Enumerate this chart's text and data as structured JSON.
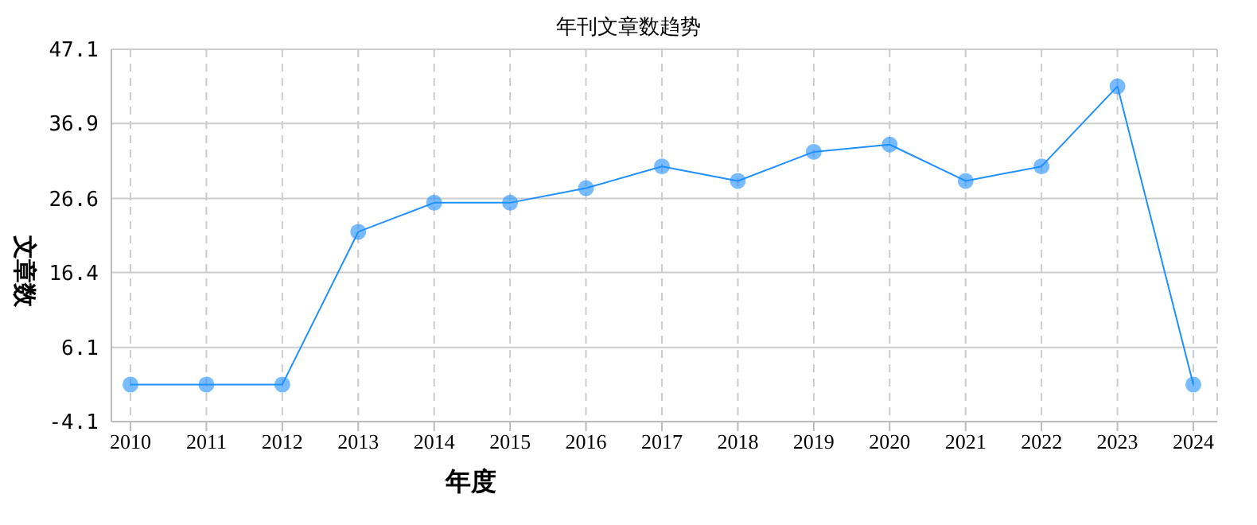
{
  "chart_data": {
    "type": "line",
    "title": "年刊文章数趋势",
    "xlabel": "年度",
    "ylabel": "文章数",
    "categories": [
      "2010",
      "2011",
      "2012",
      "2013",
      "2014",
      "2015",
      "2016",
      "2017",
      "2018",
      "2019",
      "2020",
      "2021",
      "2022",
      "2023",
      "2024"
    ],
    "series": [
      {
        "color": "#1e90ff",
        "values": [
          1,
          1,
          1,
          22,
          26,
          26,
          28,
          31,
          29,
          33,
          34,
          29,
          31,
          42,
          1
        ]
      }
    ],
    "ylim": [
      -4.1,
      47.1
    ],
    "yticks": [
      -4.1,
      6.1,
      16.4,
      26.6,
      36.9,
      47.1
    ],
    "grid": true,
    "marker": "circle",
    "line_style": "solid"
  }
}
